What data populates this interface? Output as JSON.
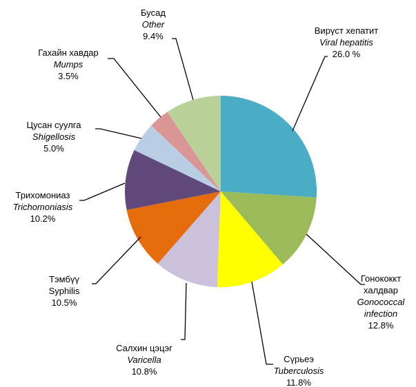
{
  "chart_data": {
    "type": "pie",
    "start_angle_deg": 0,
    "direction": "clockwise",
    "slices": [
      {
        "label_mn": "Вирүст хепатит",
        "label_en": "Viral hepatitis",
        "label_en_italic": true,
        "value": 26.0,
        "value_label": "26.0 %",
        "color": "#4BACC6"
      },
      {
        "label_mn": "Гонококкт халдвар",
        "label_en": "Gonococcal infection",
        "label_en_italic": true,
        "value": 12.8,
        "value_label": "12.8%",
        "color": "#9BBB59"
      },
      {
        "label_mn": "Сүрьеэ",
        "label_en": "Tuberculosis",
        "label_en_italic": true,
        "value": 11.8,
        "value_label": "11.8%",
        "color": "#FFFF00"
      },
      {
        "label_mn": "Салхин цэцэг",
        "label_en": "Varicella",
        "label_en_italic": true,
        "value": 10.8,
        "value_label": "10.8%",
        "color": "#CCC1DA"
      },
      {
        "label_mn": "Тэмбүү",
        "label_en": "Syphilis",
        "label_en_italic": false,
        "value": 10.5,
        "value_label": "10.5%",
        "color": "#E46C0A"
      },
      {
        "label_mn": "Трихомониаз",
        "label_en": "Trichomoniasis",
        "label_en_italic": true,
        "value": 10.2,
        "value_label": "10.2%",
        "color": "#604A7B"
      },
      {
        "label_mn": "Цусан суулга",
        "label_en": "Shigellosis",
        "label_en_italic": true,
        "value": 5.0,
        "value_label": "5.0%",
        "color": "#B9CDE5"
      },
      {
        "label_mn": "Гахайн хавдар",
        "label_en": "Mumps",
        "label_en_italic": true,
        "value": 3.5,
        "value_label": "3.5%",
        "color": "#D99694"
      },
      {
        "label_mn": "Бусад",
        "label_en": "Other",
        "label_en_italic": true,
        "value": 9.4,
        "value_label": "9.4%",
        "color": "#BBD19A"
      }
    ]
  }
}
